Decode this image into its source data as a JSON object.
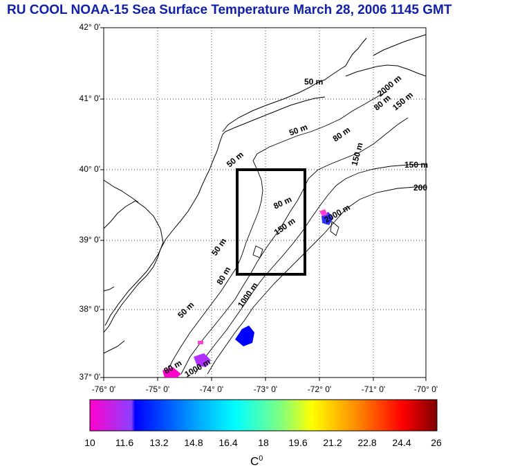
{
  "title": "RU COOL  NOAA-15 Sea Surface Temperature March 28, 2006 1145 GMT",
  "map": {
    "lat_ticks": [
      "42° 0'",
      "41° 0'",
      "40° 0'",
      "39° 0'",
      "38° 0'",
      "37° 0'"
    ],
    "lon_ticks": [
      "-76° 0'",
      "-75° 0'",
      "-74° 0'",
      "-73° 0'",
      "-72° 0'",
      "-71° 0'",
      "-70° 0'"
    ],
    "contour_labels": [
      "50 m",
      "50 m",
      "50 m",
      "50 m",
      "50 m",
      "80 m",
      "80 m",
      "80 m",
      "80 m",
      "80 m",
      "150 m",
      "150 m",
      "150 m",
      "150 m",
      "1000 m",
      "1000 m",
      "2000 m",
      "2000 m",
      "200"
    ],
    "study_box": {
      "lon_min": -73.4,
      "lon_max": -72.3,
      "lat_min": 38.5,
      "lat_max": 40.0
    }
  },
  "colorbar": {
    "ticks": [
      "10",
      "11.6",
      "13.2",
      "14.8",
      "16.4",
      "18",
      "19.6",
      "21.2",
      "22.8",
      "24.4",
      "26"
    ],
    "unit_label": "C",
    "unit_sup": "0",
    "colors": [
      "#ff00cc",
      "#8c40ff",
      "#0000ff",
      "#0080ff",
      "#00ffff",
      "#80ff80",
      "#ffff00",
      "#ff8000",
      "#ff0000",
      "#cc0000",
      "#800000"
    ]
  }
}
